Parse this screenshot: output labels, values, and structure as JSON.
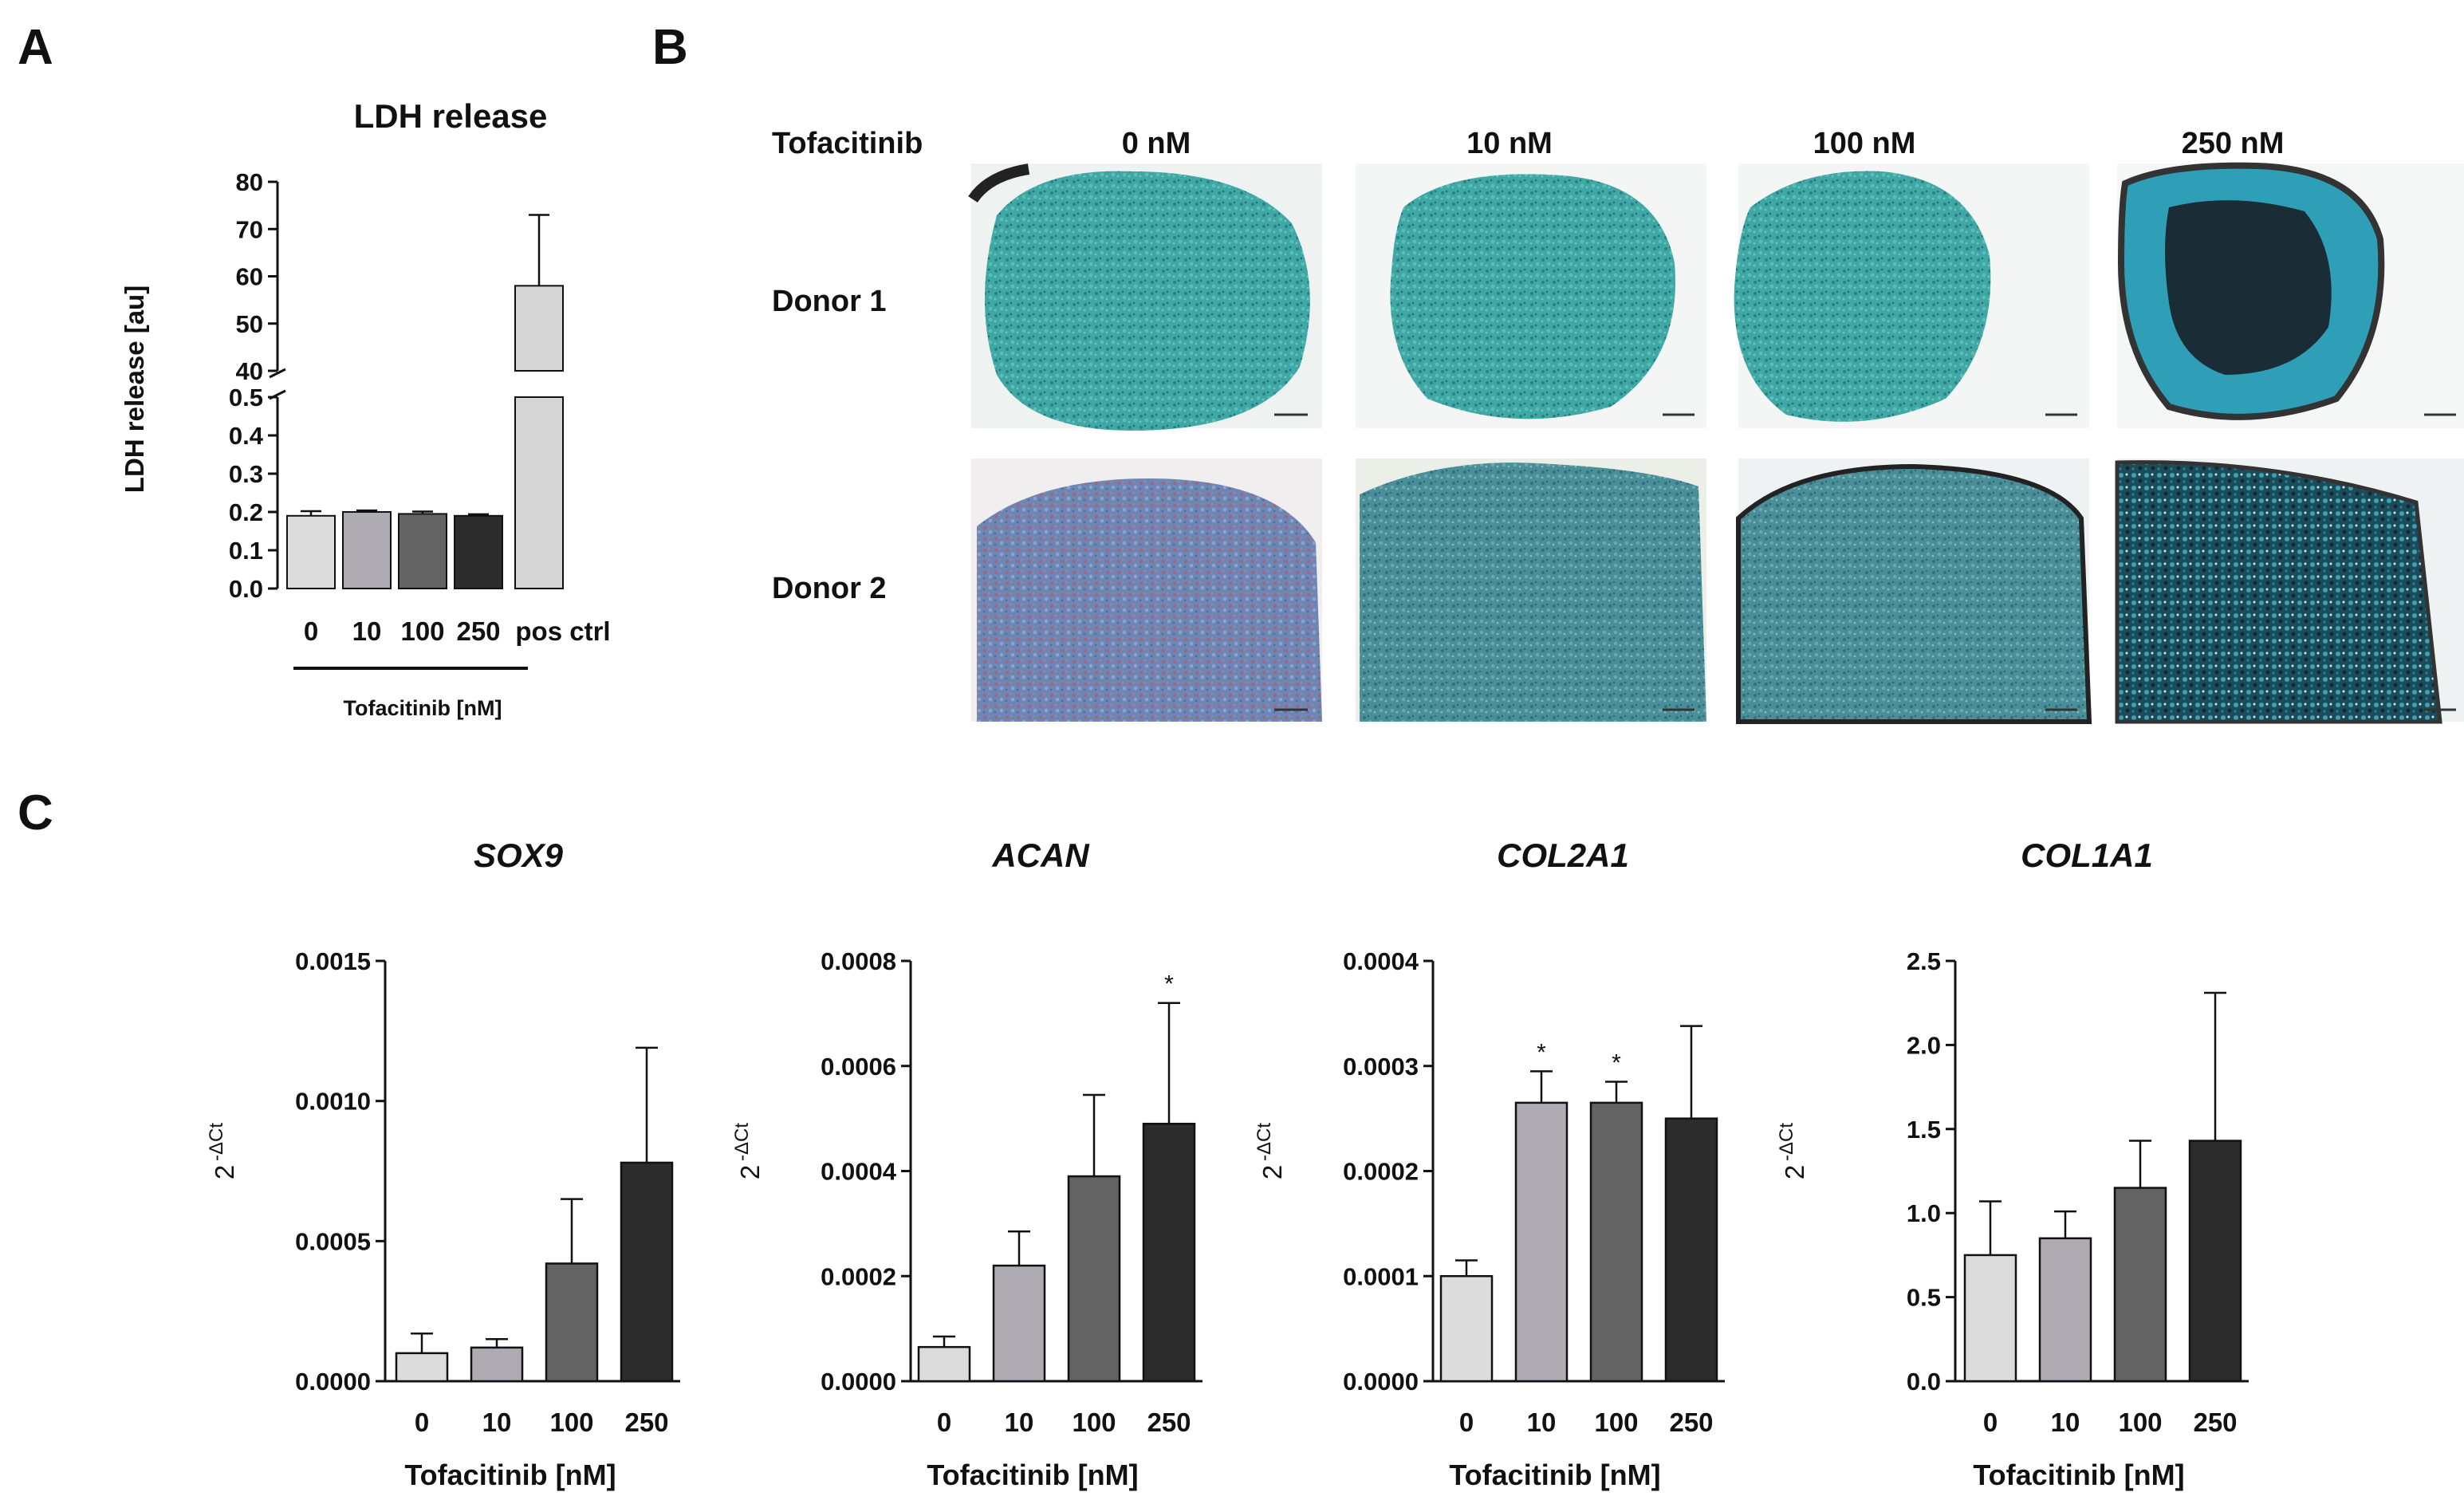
{
  "panel_labels": {
    "a": "A",
    "b": "B",
    "c": "C"
  },
  "colors": {
    "bar_0": "#dcdcdc",
    "bar_10": "#aeabb3",
    "bar_100": "#636363",
    "bar_250": "#2c2c2c",
    "bar_pos": "#d6d6d6"
  },
  "panel_b": {
    "row_header": "Tofacitinib",
    "columns": [
      "0 nM",
      "10 nM",
      "100 nM",
      "250 nM"
    ],
    "rows": [
      "Donor 1",
      "Donor 2"
    ],
    "image_kind": "histology-micrograph-blue-stain"
  },
  "chart_data": [
    {
      "id": "ldh",
      "type": "bar",
      "title": "LDH release",
      "ylabel": "LDH release [au]",
      "xlabel": "Tofacitinib [nM]",
      "categories": [
        "0",
        "10",
        "100",
        "250",
        "pos ctrl"
      ],
      "values": [
        0.19,
        0.2,
        0.195,
        0.19,
        58
      ],
      "errors": [
        0.012,
        0.004,
        0.006,
        0.004,
        15
      ],
      "y_axis_break": true,
      "ylim_lower": [
        0,
        0.5
      ],
      "ylim_upper": [
        40,
        80
      ],
      "yticks_lower": [
        "0.0",
        "0.1",
        "0.2",
        "0.3",
        "0.4",
        "0.5"
      ],
      "yticks_upper": [
        "40",
        "50",
        "60",
        "70",
        "80"
      ],
      "grid": false
    },
    {
      "id": "sox9",
      "type": "bar",
      "title": "SOX9",
      "ylabel": "2",
      "ylabel_sup": "-ΔCt",
      "xlabel": "Tofacitinib [nM]",
      "categories": [
        "0",
        "10",
        "100",
        "250"
      ],
      "values": [
        0.0001,
        0.00012,
        0.00042,
        0.00078
      ],
      "errors": [
        7e-05,
        3e-05,
        0.00023,
        0.00041
      ],
      "sig": [
        "",
        "",
        "",
        ""
      ],
      "ylim": [
        0,
        0.0015
      ],
      "yticks": [
        "0.0000",
        "0.0005",
        "0.0010",
        "0.0015"
      ],
      "grid": false
    },
    {
      "id": "acan",
      "type": "bar",
      "title": "ACAN",
      "ylabel": "2",
      "ylabel_sup": "-ΔCt",
      "xlabel": "Tofacitinib [nM]",
      "categories": [
        "0",
        "10",
        "100",
        "250"
      ],
      "values": [
        6.5e-05,
        0.00022,
        0.00039,
        0.00049
      ],
      "errors": [
        2e-05,
        6.5e-05,
        0.000155,
        0.00023
      ],
      "sig": [
        "",
        "",
        "",
        "*"
      ],
      "ylim": [
        0,
        0.0008
      ],
      "yticks": [
        "0.0000",
        "0.0002",
        "0.0004",
        "0.0006",
        "0.0008"
      ],
      "grid": false
    },
    {
      "id": "col2a1",
      "type": "bar",
      "title": "COL2A1",
      "ylabel": "2",
      "ylabel_sup": "-ΔCt",
      "xlabel": "Tofacitinib [nM]",
      "categories": [
        "0",
        "10",
        "100",
        "250"
      ],
      "values": [
        0.0001,
        0.000265,
        0.000265,
        0.00025
      ],
      "errors": [
        1.5e-05,
        3e-05,
        2e-05,
        8.8e-05
      ],
      "sig": [
        "",
        "*",
        "*",
        ""
      ],
      "ylim": [
        0,
        0.0004
      ],
      "yticks": [
        "0.0000",
        "0.0001",
        "0.0002",
        "0.0003",
        "0.0004"
      ],
      "grid": false
    },
    {
      "id": "col1a1",
      "type": "bar",
      "title": "COL1A1",
      "ylabel": "2",
      "ylabel_sup": "-ΔCt",
      "xlabel": "Tofacitinib [nM]",
      "categories": [
        "0",
        "10",
        "100",
        "250"
      ],
      "values": [
        0.75,
        0.85,
        1.15,
        1.43
      ],
      "errors": [
        0.32,
        0.16,
        0.28,
        0.88
      ],
      "sig": [
        "",
        "",
        "",
        ""
      ],
      "ylim": [
        0,
        2.5
      ],
      "yticks": [
        "0.0",
        "0.5",
        "1.0",
        "1.5",
        "2.0",
        "2.5"
      ],
      "grid": false
    }
  ]
}
